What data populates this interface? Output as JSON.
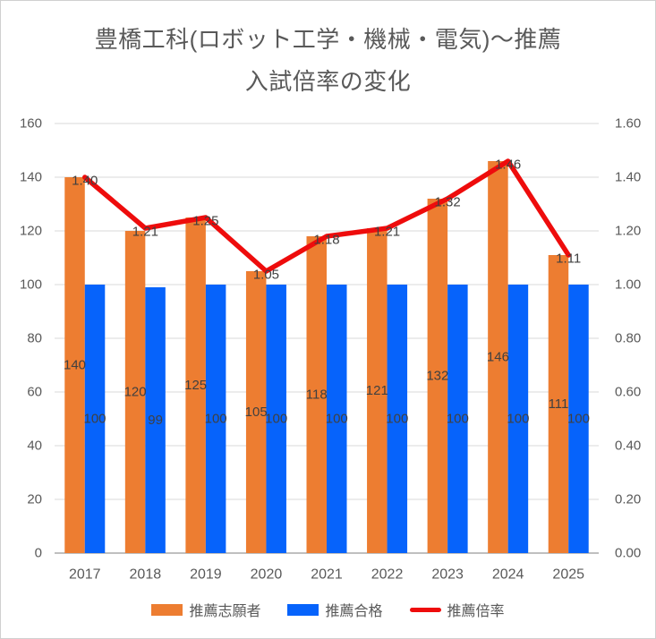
{
  "title": {
    "line1": "豊橋工科(ロボット工学・機械・電気)～推薦",
    "line2": "入試倍率の変化"
  },
  "chart_data": {
    "type": "bar",
    "subtype": "clustered-bar-with-line-combo",
    "categories": [
      "2017",
      "2018",
      "2019",
      "2020",
      "2021",
      "2022",
      "2023",
      "2024",
      "2025"
    ],
    "series": [
      {
        "name": "推薦志願者",
        "type": "bar",
        "axis": "left",
        "color": "#ED7D31",
        "values": [
          140,
          120,
          125,
          105,
          118,
          121,
          132,
          146,
          111
        ],
        "labels": [
          "140",
          "120",
          "125",
          "105",
          "118",
          "121",
          "132",
          "146",
          "111"
        ]
      },
      {
        "name": "推薦合格",
        "type": "bar",
        "axis": "left",
        "color": "#0663FB",
        "values": [
          100,
          99,
          100,
          100,
          100,
          100,
          100,
          100,
          100
        ],
        "labels": [
          "100",
          "99",
          "100",
          "100",
          "100",
          "100",
          "100",
          "100",
          "100"
        ]
      },
      {
        "name": "推薦倍率",
        "type": "line",
        "axis": "right",
        "color": "#EE0C0C",
        "values": [
          1.4,
          1.21,
          1.25,
          1.05,
          1.18,
          1.21,
          1.32,
          1.46,
          1.11
        ],
        "labels": [
          "1.40",
          "1.21",
          "1.25",
          "1.05",
          "1.18",
          "1.21",
          "1.32",
          "1.46",
          "1.11"
        ]
      }
    ],
    "left_axis": {
      "min": 0,
      "max": 160,
      "step": 20,
      "ticks": [
        "0",
        "20",
        "40",
        "60",
        "80",
        "100",
        "120",
        "140",
        "160"
      ]
    },
    "right_axis": {
      "min": 0,
      "max": 1.6,
      "step": 0.2,
      "ticks": [
        "0.00",
        "0.20",
        "0.40",
        "0.60",
        "0.80",
        "1.00",
        "1.20",
        "1.40",
        "1.60"
      ]
    },
    "grid": true,
    "legend_position": "bottom"
  },
  "colors": {
    "gridline": "#D9D9D9",
    "axis_line": "#BFBFBF",
    "tick_text": "#595959",
    "data_label_text": "#404040",
    "title_text": "#595959",
    "background": "#FFFFFF",
    "border": "#D0D0D0"
  }
}
